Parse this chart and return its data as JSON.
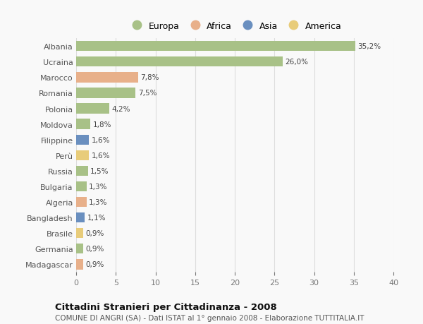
{
  "countries": [
    "Albania",
    "Ucraina",
    "Marocco",
    "Romania",
    "Polonia",
    "Moldova",
    "Filippine",
    "Perù",
    "Russia",
    "Bulgaria",
    "Algeria",
    "Bangladesh",
    "Brasile",
    "Germania",
    "Madagascar"
  ],
  "values": [
    35.2,
    26.0,
    7.8,
    7.5,
    4.2,
    1.8,
    1.6,
    1.6,
    1.5,
    1.3,
    1.3,
    1.1,
    0.9,
    0.9,
    0.9
  ],
  "continents": [
    "Europa",
    "Europa",
    "Africa",
    "Europa",
    "Europa",
    "Europa",
    "Asia",
    "America",
    "Europa",
    "Europa",
    "Africa",
    "Asia",
    "America",
    "Europa",
    "Africa"
  ],
  "colors": {
    "Europa": "#a8c187",
    "Africa": "#e8b08a",
    "Asia": "#6a8fbf",
    "America": "#e8cc7a"
  },
  "legend_order": [
    "Europa",
    "Africa",
    "Asia",
    "America"
  ],
  "xlim": [
    0,
    40
  ],
  "xticks": [
    0,
    5,
    10,
    15,
    20,
    25,
    30,
    35,
    40
  ],
  "title": "Cittadini Stranieri per Cittadinanza - 2008",
  "subtitle": "COMUNE DI ANGRI (SA) - Dati ISTAT al 1° gennaio 2008 - Elaborazione TUTTITALIA.IT",
  "bg_color": "#f9f9f9",
  "bar_height": 0.65,
  "grid_color": "#dddddd",
  "label_fontsize": 7.5,
  "ytick_fontsize": 8.0,
  "xtick_fontsize": 8.0,
  "legend_fontsize": 9.0,
  "title_fontsize": 9.5,
  "subtitle_fontsize": 7.5
}
